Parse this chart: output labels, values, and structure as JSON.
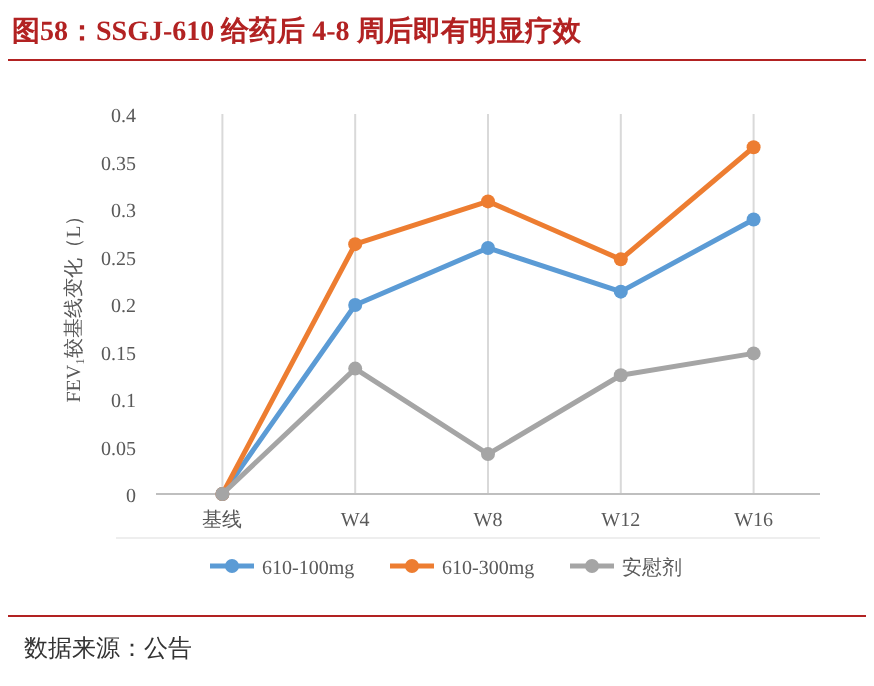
{
  "chart_data": {
    "type": "line",
    "title": "图58：SSGJ-610 给药后 4-8 周后即有明显疗效",
    "ylabel": "FEV₁较基线变化（L）",
    "annotations": [
      "数据来源：公告"
    ],
    "categories": [
      "基线",
      "W4",
      "W8",
      "W12",
      "W16"
    ],
    "series": [
      {
        "name": "610-100mg",
        "color": "#5b9bd5",
        "values": [
          0,
          0.199,
          0.259,
          0.213,
          0.289
        ]
      },
      {
        "name": "610-300mg",
        "color": "#ed7d31",
        "values": [
          0,
          0.263,
          0.308,
          0.247,
          0.365
        ]
      },
      {
        "name": "安慰剂",
        "color": "#a5a5a5",
        "values": [
          0,
          0.132,
          0.042,
          0.125,
          0.148
        ]
      }
    ],
    "ylim": [
      0,
      0.4
    ],
    "yticks": [
      0,
      0.05,
      0.1,
      0.15,
      0.2,
      0.25,
      0.3,
      0.35,
      0.4
    ],
    "grid": "x",
    "legend": "bottom",
    "marker": "circle",
    "line_style": "solid"
  }
}
